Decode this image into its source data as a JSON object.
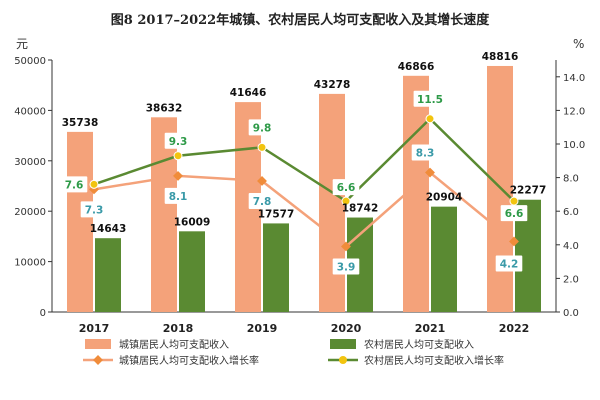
{
  "chart_data": {
    "type": "bar",
    "title": "图8 2017–2022年城镇、农村居民人均可支配收入及其增长速度",
    "left_unit": "元",
    "right_unit": "%",
    "categories": [
      "2017",
      "2018",
      "2019",
      "2020",
      "2021",
      "2022"
    ],
    "left_axis": {
      "min": 0,
      "max": 50000,
      "ticks": [
        0,
        10000,
        20000,
        30000,
        40000,
        50000
      ]
    },
    "right_axis": {
      "min": 0.0,
      "max": 15.0,
      "ticks": [
        "0.0",
        "2.0",
        "4.0",
        "6.0",
        "8.0",
        "10.0",
        "12.0",
        "14.0"
      ]
    },
    "series": [
      {
        "name": "城镇居民人均可支配收入",
        "kind": "bar",
        "axis": "left",
        "color": "#F4A27A",
        "values": [
          35738,
          38632,
          41646,
          43278,
          46866,
          48816
        ]
      },
      {
        "name": "农村居民人均可支配收入",
        "kind": "bar",
        "axis": "left",
        "color": "#5A8A32",
        "values": [
          14643,
          16009,
          17577,
          18742,
          20904,
          22277
        ]
      },
      {
        "name": "城镇居民人均可支配收入增长率",
        "kind": "line",
        "axis": "right",
        "color": "#F4A27A",
        "marker_color": "#F08C3A",
        "label_color": "#3A9AA8",
        "values": [
          7.3,
          8.1,
          7.8,
          3.9,
          8.3,
          4.2
        ]
      },
      {
        "name": "农村居民人均可支配收入增长率",
        "kind": "line",
        "axis": "right",
        "color": "#5A8A32",
        "marker_color": "#F2C40F",
        "label_color": "#2E9A48",
        "values": [
          7.6,
          9.3,
          9.8,
          6.6,
          11.5,
          6.6
        ]
      }
    ],
    "legend_position": "bottom",
    "grid": false
  }
}
